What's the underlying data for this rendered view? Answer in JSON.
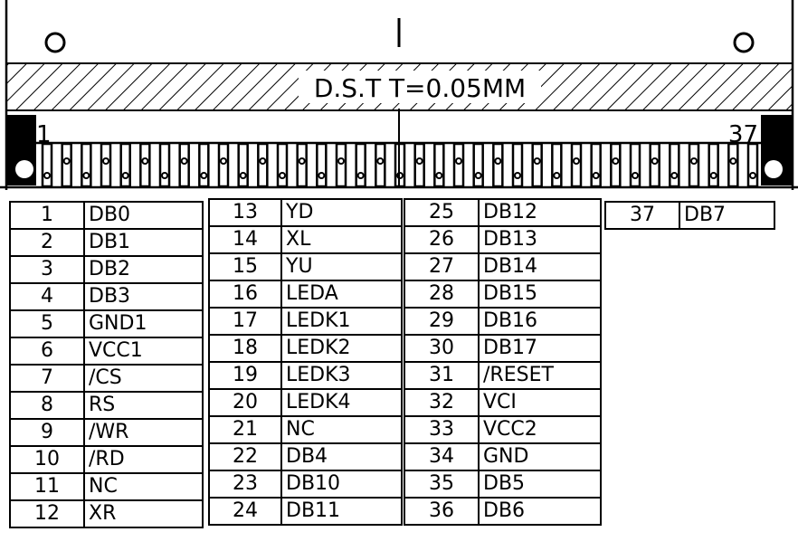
{
  "drawing": {
    "stiffener_label": "D.S.T  T=0.05MM",
    "pin_first_label": "1",
    "pin_last_label": "37",
    "pin_count": 37
  },
  "pin_tables": [
    [
      [
        "1",
        "DB0"
      ],
      [
        "2",
        "DB1"
      ],
      [
        "3",
        "DB2"
      ],
      [
        "4",
        "DB3"
      ],
      [
        "5",
        "GND1"
      ],
      [
        "6",
        "VCC1"
      ],
      [
        "7",
        "/CS"
      ],
      [
        "8",
        "RS"
      ],
      [
        "9",
        "/WR"
      ],
      [
        "10",
        "/RD"
      ],
      [
        "11",
        "NC"
      ],
      [
        "12",
        "XR"
      ]
    ],
    [
      [
        "13",
        "YD"
      ],
      [
        "14",
        "XL"
      ],
      [
        "15",
        "YU"
      ],
      [
        "16",
        "LEDA"
      ],
      [
        "17",
        "LEDK1"
      ],
      [
        "18",
        "LEDK2"
      ],
      [
        "19",
        "LEDK3"
      ],
      [
        "20",
        "LEDK4"
      ],
      [
        "21",
        "NC"
      ],
      [
        "22",
        "DB4"
      ],
      [
        "23",
        "DB10"
      ],
      [
        "24",
        "DB11"
      ]
    ],
    [
      [
        "25",
        "DB12"
      ],
      [
        "26",
        "DB13"
      ],
      [
        "27",
        "DB14"
      ],
      [
        "28",
        "DB15"
      ],
      [
        "29",
        "DB16"
      ],
      [
        "30",
        "DB17"
      ],
      [
        "31",
        "/RESET"
      ],
      [
        "32",
        "VCI"
      ],
      [
        "33",
        "VCC2"
      ],
      [
        "34",
        "GND"
      ],
      [
        "35",
        "DB5"
      ],
      [
        "36",
        "DB6"
      ]
    ],
    [
      [
        "37",
        "DB7"
      ]
    ]
  ]
}
